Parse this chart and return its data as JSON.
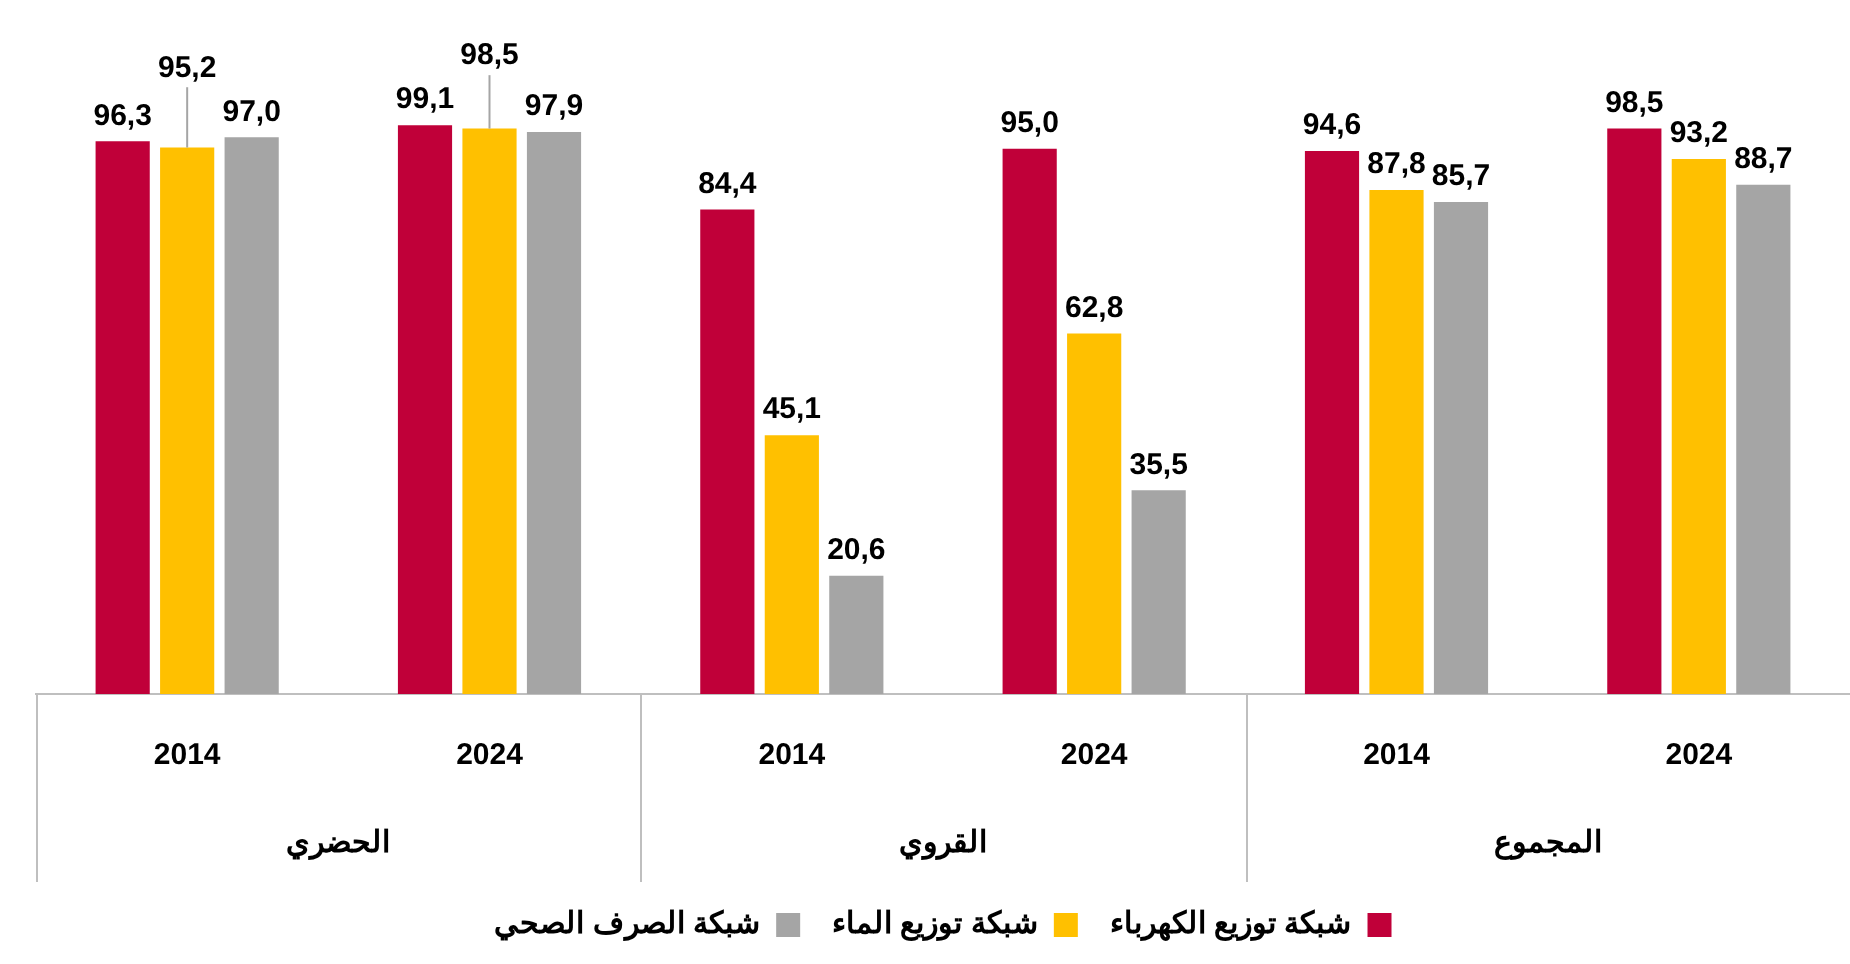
{
  "chart_data": {
    "type": "bar",
    "categories": [
      "2014",
      "2024",
      "2014",
      "2024",
      "2014",
      "2024"
    ],
    "annotations": [
      "الحضري",
      "القروي",
      "المجموع"
    ],
    "series": [
      {
        "name": "شبكة توزيع الكهرباء",
        "color": "#c00039",
        "values": [
          96.3,
          99.1,
          84.4,
          95.0,
          94.6,
          98.5
        ],
        "value_labels": [
          "96,3",
          "99,1",
          "84,4",
          "95,0",
          "94,6",
          "98,5"
        ]
      },
      {
        "name": "شبكة توزيع الماء",
        "color": "#ffc000",
        "values": [
          95.2,
          98.5,
          45.1,
          62.8,
          87.8,
          93.2
        ],
        "value_labels": [
          "95,2",
          "98,5",
          "45,1",
          "62,8",
          "87,8",
          "93,2"
        ]
      },
      {
        "name": "شبكة الصرف الصحي",
        "color": "#a5a5a5",
        "values": [
          97.0,
          97.9,
          20.6,
          35.5,
          85.7,
          88.7
        ],
        "value_labels": [
          "97,0",
          "97,9",
          "20,6",
          "35,5",
          "85,7",
          "88,7"
        ]
      }
    ],
    "ylim": [
      0,
      100
    ],
    "tick_labels": "x",
    "legend": "bottom"
  }
}
